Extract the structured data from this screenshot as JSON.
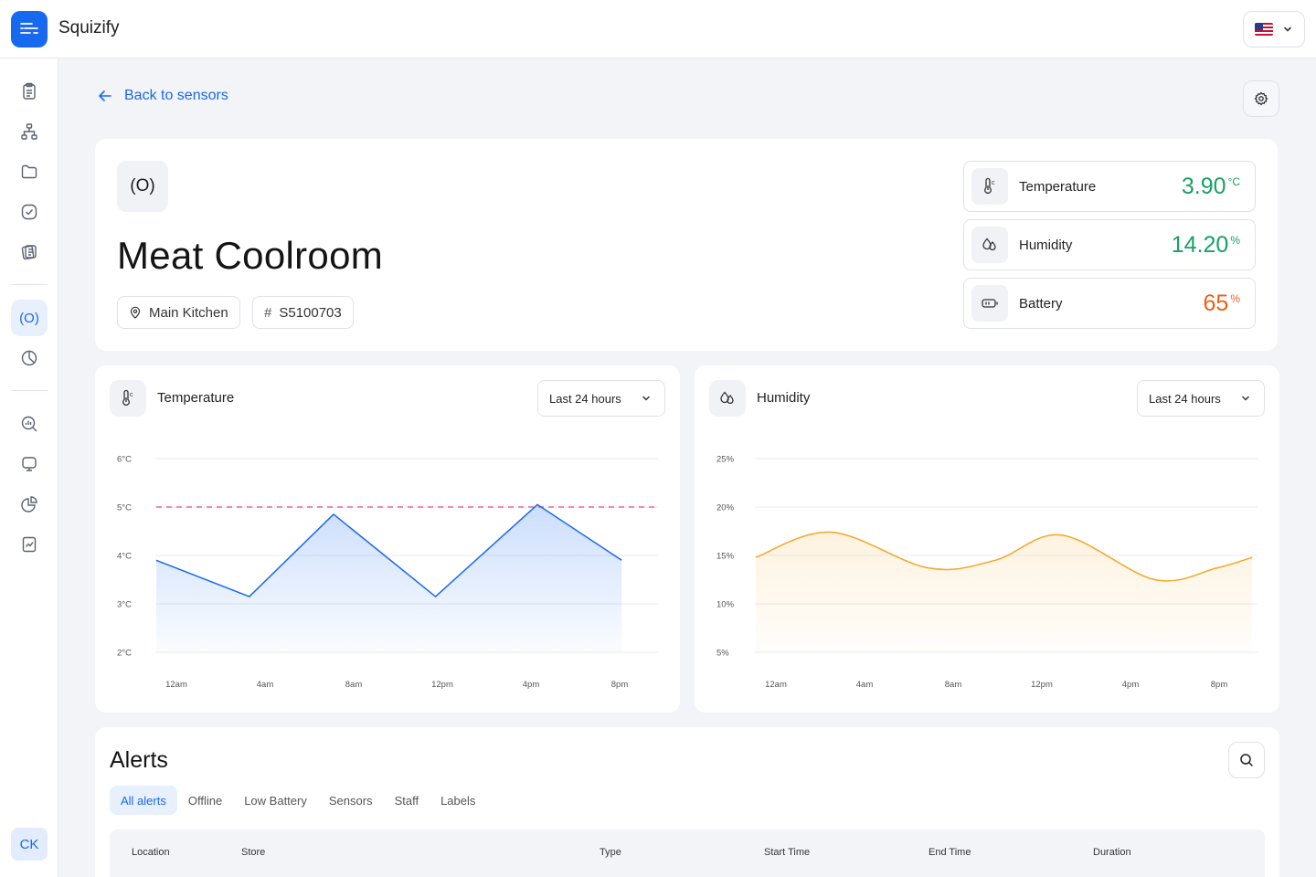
{
  "app": {
    "name": "Squizify",
    "logo_icon": "menu-lines-icon",
    "brand_color": "#1769f0"
  },
  "header": {
    "language_flag": "us-flag-icon"
  },
  "sidebar": {
    "items": [
      {
        "icon": "clipboard-icon"
      },
      {
        "icon": "hierarchy-icon"
      },
      {
        "icon": "folder-icon"
      },
      {
        "icon": "check-circle-icon"
      },
      {
        "icon": "cards-icon"
      },
      {
        "icon": "sensor-icon",
        "label": "(O)",
        "active": true
      },
      {
        "icon": "pie-chart-icon"
      },
      {
        "icon": "search-chart-icon"
      },
      {
        "icon": "presentation-icon"
      },
      {
        "icon": "chart-pie-icon"
      },
      {
        "icon": "report-icon"
      }
    ],
    "user_initials": "CK"
  },
  "nav": {
    "back_label": "Back to sensors"
  },
  "sensor": {
    "icon_text": "(O)",
    "name": "Meat Coolroom",
    "location": "Main Kitchen",
    "serial_prefix": "#",
    "serial": "S5100703"
  },
  "metrics": [
    {
      "label": "Temperature",
      "value": "3.90",
      "unit": "°C",
      "color": "#18a065",
      "icon": "thermometer-icon"
    },
    {
      "label": "Humidity",
      "value": "14.20",
      "unit": "%",
      "color": "#18a065",
      "icon": "droplets-icon"
    },
    {
      "label": "Battery",
      "value": "65",
      "unit": "%",
      "color": "#ee5e12",
      "icon": "battery-icon"
    }
  ],
  "charts": {
    "temperature": {
      "title": "Temperature",
      "range": "Last 24 hours"
    },
    "humidity": {
      "title": "Humidity",
      "range": "Last 24 hours"
    }
  },
  "chart_data": [
    {
      "type": "area",
      "title": "Temperature",
      "x_ticks": [
        "12am",
        "4am",
        "8am",
        "12pm",
        "4pm",
        "8pm"
      ],
      "y_ticks": [
        "2°C",
        "3°C",
        "4°C",
        "5°C",
        "6°C"
      ],
      "ylim": [
        2,
        6
      ],
      "threshold": 5,
      "threshold_color": "#f06292",
      "color": "#1769f0",
      "series": [
        {
          "x": [
            0,
            1.05,
            2.0,
            3.15,
            4.3,
            5.25
          ],
          "values": [
            3.9,
            3.15,
            4.85,
            3.15,
            5.05,
            3.9
          ]
        }
      ]
    },
    {
      "type": "area",
      "title": "Humidity",
      "x_ticks": [
        "12am",
        "4am",
        "8am",
        "12pm",
        "4pm",
        "8pm"
      ],
      "y_ticks": [
        "5%",
        "10%",
        "15%",
        "20%",
        "25%"
      ],
      "ylim": [
        5,
        25
      ],
      "color": "#f5a623",
      "series": [
        {
          "x": [
            0,
            0.85,
            1.95,
            2.7,
            3.45,
            4.5,
            5.2,
            5.6
          ],
          "values": [
            14.8,
            17.4,
            13.7,
            14.5,
            17.1,
            12.5,
            13.7,
            14.8
          ]
        }
      ]
    }
  ],
  "alerts": {
    "title": "Alerts",
    "tabs": [
      "All alerts",
      "Offline",
      "Low Battery",
      "Sensors",
      "Staff",
      "Labels"
    ],
    "active_tab": "All alerts",
    "columns": [
      "Location",
      "Store",
      "Type",
      "Start Time",
      "End Time",
      "Duration"
    ]
  }
}
